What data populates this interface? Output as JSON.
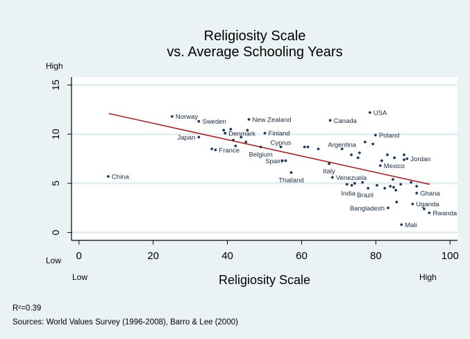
{
  "chart_data": {
    "type": "scatter",
    "title": "Religiosity Scale",
    "subtitle": "vs. Average Schooling Years",
    "xlabel": "Religiosity Scale",
    "x_low_label": "Low",
    "x_high_label": "High",
    "y_low_label": "Low",
    "y_high_label": "High",
    "xlim": [
      -2,
      102
    ],
    "ylim": [
      -0.8,
      15.8
    ],
    "xticks": [
      0,
      20,
      40,
      60,
      80,
      100
    ],
    "yticks": [
      0,
      5,
      10,
      15
    ],
    "grid": "horizontal",
    "point_color": "#1f3a5f",
    "fit_line_color": "#a0282a",
    "fit_line": {
      "x": [
        8,
        94.5
      ],
      "y": [
        12.1,
        4.9
      ]
    },
    "annotation_r2": "R²=0.39",
    "sources": "Sources: World Values Survey (1996-2008), Barro & Lee (2000)",
    "points": [
      {
        "label": "China",
        "x": 7.9,
        "y": 5.7
      },
      {
        "label": "Norway",
        "x": 25.1,
        "y": 11.8
      },
      {
        "label": "Sweden",
        "x": 32.3,
        "y": 11.3
      },
      {
        "label": "Japan",
        "x": 32.3,
        "y": 9.7,
        "side": "left"
      },
      {
        "label": "",
        "x": 35.8,
        "y": 8.5
      },
      {
        "label": "France",
        "x": 36.8,
        "y": 8.4
      },
      {
        "label": "",
        "x": 39.0,
        "y": 10.4
      },
      {
        "label": "Denmark",
        "x": 39.4,
        "y": 10.1
      },
      {
        "label": "",
        "x": 40.9,
        "y": 10.5
      },
      {
        "label": "",
        "x": 41.6,
        "y": 9.4
      },
      {
        "label": "",
        "x": 42.2,
        "y": 8.8
      },
      {
        "label": "",
        "x": 43.7,
        "y": 9.7
      },
      {
        "label": "",
        "x": 45.0,
        "y": 9.2
      },
      {
        "label": "",
        "x": 45.4,
        "y": 10.4
      },
      {
        "label": "New Zealand",
        "x": 45.8,
        "y": 11.5
      },
      {
        "label": "Belgium",
        "x": 49.0,
        "y": 8.7,
        "side": "below"
      },
      {
        "label": "Finland",
        "x": 50.1,
        "y": 10.1
      },
      {
        "label": "Cyprus",
        "x": 54.4,
        "y": 8.7,
        "side": "above"
      },
      {
        "label": "",
        "x": 54.8,
        "y": 7.3
      },
      {
        "label": "Spain",
        "x": 55.7,
        "y": 7.3,
        "side": "left"
      },
      {
        "label": "Thailand",
        "x": 57.2,
        "y": 6.1,
        "side": "below"
      },
      {
        "label": "",
        "x": 60.8,
        "y": 8.7
      },
      {
        "label": "",
        "x": 61.7,
        "y": 8.7
      },
      {
        "label": "",
        "x": 64.5,
        "y": 8.5
      },
      {
        "label": "Italy",
        "x": 67.4,
        "y": 7.0,
        "side": "below"
      },
      {
        "label": "Canada",
        "x": 67.7,
        "y": 11.4
      },
      {
        "label": "Venezuela",
        "x": 68.3,
        "y": 5.6
      },
      {
        "label": "Argentina",
        "x": 70.9,
        "y": 8.5,
        "side": "above"
      },
      {
        "label": "India",
        "x": 72.2,
        "y": 4.9,
        "side": "below"
      },
      {
        "label": "",
        "x": 73.4,
        "y": 7.9
      },
      {
        "label": "",
        "x": 73.5,
        "y": 4.8
      },
      {
        "label": "",
        "x": 74.3,
        "y": 5.0
      },
      {
        "label": "",
        "x": 75.2,
        "y": 7.6
      },
      {
        "label": "",
        "x": 75.6,
        "y": 8.1
      },
      {
        "label": "",
        "x": 76.4,
        "y": 5.1
      },
      {
        "label": "",
        "x": 77.1,
        "y": 9.2
      },
      {
        "label": "Brazil",
        "x": 77.9,
        "y": 4.5,
        "side": "below"
      },
      {
        "label": "USA",
        "x": 78.4,
        "y": 12.2
      },
      {
        "label": "",
        "x": 79.2,
        "y": 9.0
      },
      {
        "label": "Poland",
        "x": 79.9,
        "y": 9.9
      },
      {
        "label": "",
        "x": 80.3,
        "y": 4.8
      },
      {
        "label": "Mexico",
        "x": 81.2,
        "y": 6.8
      },
      {
        "label": "",
        "x": 81.6,
        "y": 7.3
      },
      {
        "label": "",
        "x": 82.4,
        "y": 4.5
      },
      {
        "label": "",
        "x": 83.1,
        "y": 7.9
      },
      {
        "label": "Bangladesh",
        "x": 83.3,
        "y": 2.5,
        "side": "left"
      },
      {
        "label": "",
        "x": 83.9,
        "y": 4.7
      },
      {
        "label": "",
        "x": 84.6,
        "y": 5.4
      },
      {
        "label": "",
        "x": 84.8,
        "y": 4.6
      },
      {
        "label": "",
        "x": 85.0,
        "y": 7.6
      },
      {
        "label": "",
        "x": 85.4,
        "y": 4.3
      },
      {
        "label": "",
        "x": 85.6,
        "y": 3.1
      },
      {
        "label": "",
        "x": 86.7,
        "y": 4.9
      },
      {
        "label": "Mali",
        "x": 86.9,
        "y": 0.8
      },
      {
        "label": "",
        "x": 87.6,
        "y": 7.9
      },
      {
        "label": "",
        "x": 87.6,
        "y": 7.4
      },
      {
        "label": "Jordan",
        "x": 88.4,
        "y": 7.5
      },
      {
        "label": "",
        "x": 89.5,
        "y": 5.1
      },
      {
        "label": "Uganda",
        "x": 89.9,
        "y": 2.9
      },
      {
        "label": "",
        "x": 91.0,
        "y": 4.7
      },
      {
        "label": "Ghana",
        "x": 91.0,
        "y": 4.0
      },
      {
        "label": "",
        "x": 93.0,
        "y": 2.4
      },
      {
        "label": "Rwanda",
        "x": 94.4,
        "y": 2.0
      }
    ]
  }
}
